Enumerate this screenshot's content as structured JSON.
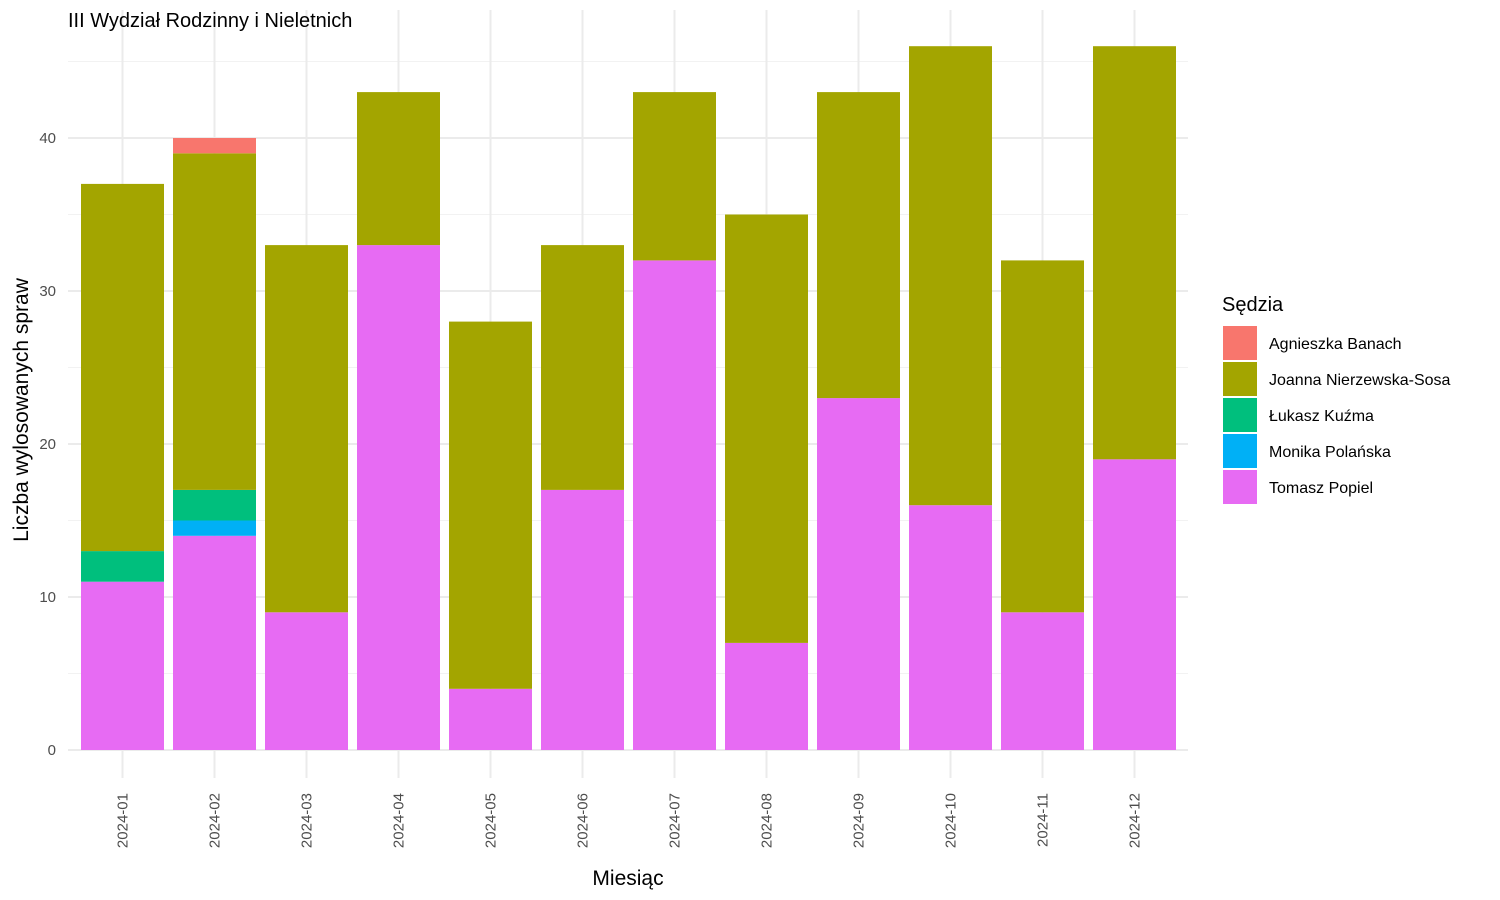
{
  "chart_data": {
    "type": "bar",
    "stacked": true,
    "title": "III Wydział Rodzinny i Nieletnich",
    "xlabel": "Miesiąc",
    "ylabel": "Liczba wylosowanych spraw",
    "ylim": [
      0,
      48
    ],
    "yticks": [
      0,
      10,
      20,
      30,
      40
    ],
    "grid": true,
    "legend_title": "Sędzia",
    "legend_position": "right",
    "categories": [
      "2024-01",
      "2024-02",
      "2024-03",
      "2024-04",
      "2024-05",
      "2024-06",
      "2024-07",
      "2024-08",
      "2024-09",
      "2024-10",
      "2024-11",
      "2024-12"
    ],
    "series": [
      {
        "name": "Agnieszka Banach",
        "color": "#F8766D",
        "values": [
          0,
          1,
          0,
          0,
          0,
          0,
          0,
          0,
          0,
          0,
          0,
          0
        ]
      },
      {
        "name": "Joanna Nierzewska-Sosa",
        "color": "#A3A500",
        "values": [
          24,
          22,
          24,
          10,
          24,
          16,
          11,
          28,
          20,
          30,
          23,
          27
        ]
      },
      {
        "name": "Łukasz Kuźma",
        "color": "#00BF7D",
        "values": [
          2,
          2,
          0,
          0,
          0,
          0,
          0,
          0,
          0,
          0,
          0,
          0
        ]
      },
      {
        "name": "Monika Polańska",
        "color": "#00B0F6",
        "values": [
          0,
          1,
          0,
          0,
          0,
          0,
          0,
          0,
          0,
          0,
          0,
          0
        ]
      },
      {
        "name": "Tomasz Popiel",
        "color": "#E76BF3",
        "values": [
          11,
          14,
          9,
          33,
          4,
          17,
          32,
          7,
          23,
          16,
          9,
          19
        ]
      }
    ]
  }
}
